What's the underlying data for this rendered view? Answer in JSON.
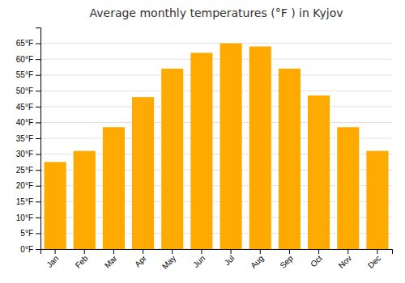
{
  "chart_data": {
    "type": "bar",
    "title": "Average monthly temperatures (°F ) in Kyjov",
    "categories": [
      "Jan",
      "Feb",
      "Mar",
      "Apr",
      "May",
      "Jun",
      "Jul",
      "Aug",
      "Sep",
      "Oct",
      "Nov",
      "Dec"
    ],
    "values": [
      27.5,
      31.0,
      38.5,
      48.0,
      57.0,
      62.0,
      65.0,
      64.0,
      57.0,
      48.5,
      38.5,
      31.0
    ],
    "color": "#FFAA00",
    "ylim": [
      0,
      70
    ],
    "yticks": [
      {
        "value": 0,
        "label": "0°F"
      },
      {
        "value": 5,
        "label": "5°F"
      },
      {
        "value": 10,
        "label": "10°F"
      },
      {
        "value": 15,
        "label": "15°F"
      },
      {
        "value": 20,
        "label": "20°F"
      },
      {
        "value": 25,
        "label": "25°F"
      },
      {
        "value": 30,
        "label": "30°F"
      },
      {
        "value": 35,
        "label": "35°F"
      },
      {
        "value": 40,
        "label": "40°F"
      },
      {
        "value": 45,
        "label": "45°F"
      },
      {
        "value": 50,
        "label": "50°F"
      },
      {
        "value": 55,
        "label": "55°F"
      },
      {
        "value": 60,
        "label": "60°F"
      },
      {
        "value": 65,
        "label": "65°F"
      }
    ],
    "grid": true
  }
}
